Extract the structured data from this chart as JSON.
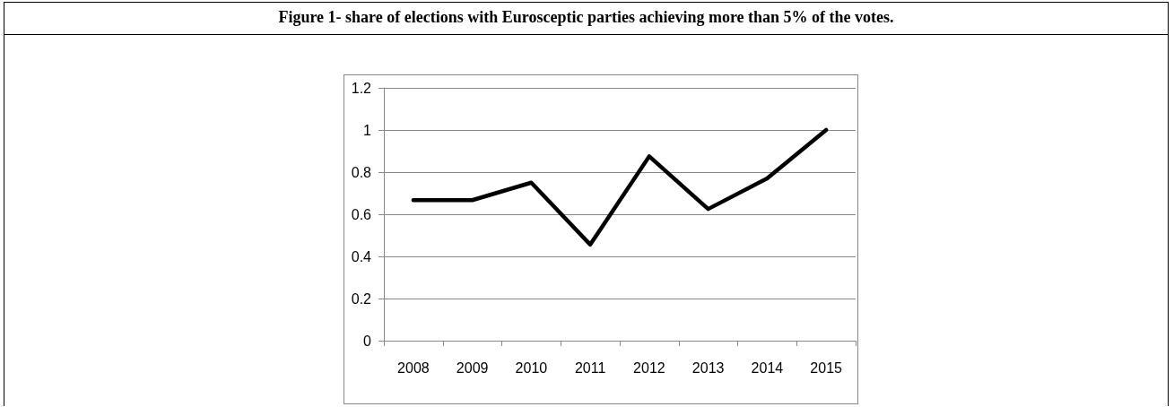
{
  "chart_data": {
    "type": "line",
    "title": "Figure 1- share of elections with Eurosceptic parties achieving more than 5% of the votes.",
    "categories": [
      "2008",
      "2009",
      "2010",
      "2011",
      "2012",
      "2013",
      "2014",
      "2015"
    ],
    "series": [
      {
        "color": "#000000",
        "values": [
          0.667,
          0.667,
          0.75,
          0.456,
          0.875,
          0.625,
          0.77,
          1
        ]
      }
    ],
    "ylim": [
      0,
      1.2
    ],
    "yticks": [
      0,
      0.2,
      0.4,
      0.6,
      0.8,
      1,
      1.2
    ],
    "grid": "y",
    "marker": "none",
    "line_style": "solid"
  }
}
